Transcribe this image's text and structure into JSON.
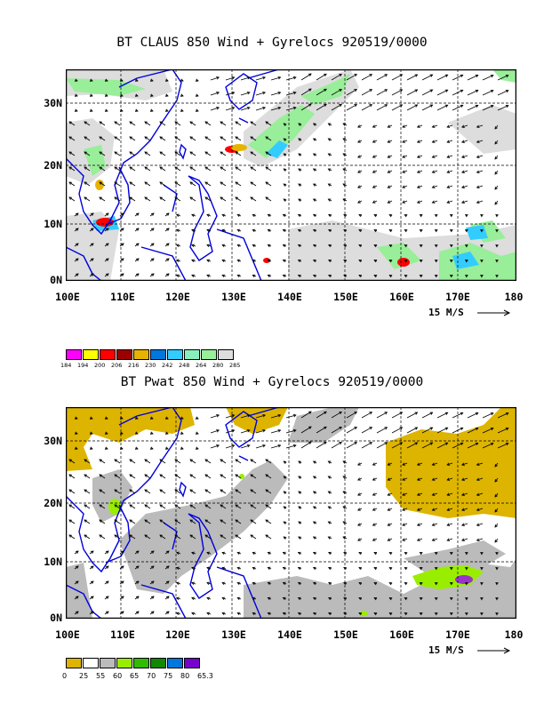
{
  "panels": [
    {
      "title": "BT CLAUS 850 Wind + Gyrelocs 920519/0000",
      "lat_labels": [
        "30N",
        "20N",
        "10N",
        "0N"
      ],
      "lon_labels": [
        "100E",
        "110E",
        "120E",
        "130E",
        "140E",
        "150E",
        "160E",
        "170E",
        "180"
      ],
      "scale_label": "15 M/S",
      "legend_colors": [
        "#ff00ff",
        "#ffff00",
        "#ff0000",
        "#9b0000",
        "#e6b400",
        "#0077dd",
        "#33ccff",
        "#88eebb",
        "#99ee99",
        "#dddddd"
      ],
      "legend_labels": [
        "184",
        "194",
        "200",
        "206",
        "216",
        "230",
        "242",
        "248",
        "264",
        "280",
        "285"
      ]
    },
    {
      "title": "BT Pwat 850 Wind + Gyrelocs 920519/0000",
      "lat_labels": [
        "30N",
        "20N",
        "10N",
        "0N"
      ],
      "lon_labels": [
        "100E",
        "110E",
        "120E",
        "130E",
        "140E",
        "150E",
        "160E",
        "170E",
        "180"
      ],
      "scale_label": "15 M/S",
      "legend_colors": [
        "#ddb400",
        "#ffffff",
        "#bbbbbb",
        "#99ee00",
        "#33bb00",
        "#118800",
        "#0077dd",
        "#7700cc"
      ],
      "legend_labels": [
        "0",
        "25",
        "55",
        "60",
        "65",
        "70",
        "75",
        "80",
        "65.3"
      ]
    }
  ]
}
